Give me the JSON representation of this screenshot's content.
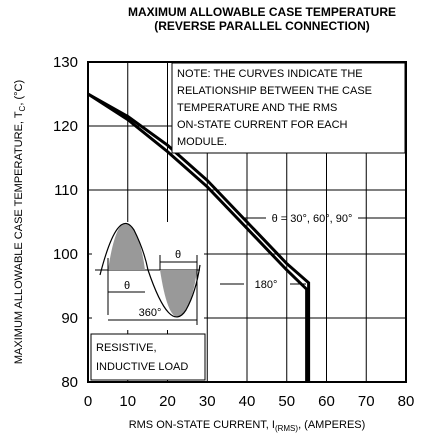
{
  "chart_data": {
    "type": "line",
    "title": [
      "MAXIMUM ALLOWABLE CASE TEMPERATURE",
      "(REVERSE PARALLEL CONNECTION)"
    ],
    "xlabel": [
      "RMS ON-STATE  CURRENT, I",
      "(RMS)",
      ", (AMPERES)"
    ],
    "ylabel": [
      "MAXIMUM ALLOWABLE CASE TEMPERATURE, T",
      "C",
      ", (°C)"
    ],
    "xlim": [
      0,
      80
    ],
    "xticks": [
      0,
      10,
      20,
      30,
      40,
      50,
      60,
      70,
      80
    ],
    "ylim": [
      80,
      130
    ],
    "yticks": [
      80,
      90,
      100,
      110,
      120,
      130
    ],
    "grid": true,
    "series": [
      {
        "name": "θ = 30°, 60°, 90°",
        "color": "#000000",
        "x": [
          0,
          10,
          20,
          30,
          40,
          50,
          55.5,
          55.5
        ],
        "values": [
          125,
          121.5,
          117,
          111.5,
          105,
          98.5,
          95.5,
          80
        ]
      },
      {
        "name": "180°",
        "color": "#000000",
        "x": [
          0,
          10,
          20,
          30,
          40,
          50,
          55,
          55
        ],
        "values": [
          125,
          121,
          116,
          110.5,
          104,
          97.5,
          94.5,
          80
        ]
      }
    ],
    "annotations": {
      "note": [
        "NOTE: THE CURVES INDICATE THE",
        "RELATIONSHIP BETWEEN THE CASE",
        "TEMPERATURE AND THE RMS",
        "ON-STATE CURRENT FOR EACH",
        "MODULE."
      ],
      "load": [
        "RESISTIVE,",
        "INDUCTIVE LOAD"
      ],
      "wave": [
        "θ",
        "θ",
        "360°"
      ]
    }
  }
}
